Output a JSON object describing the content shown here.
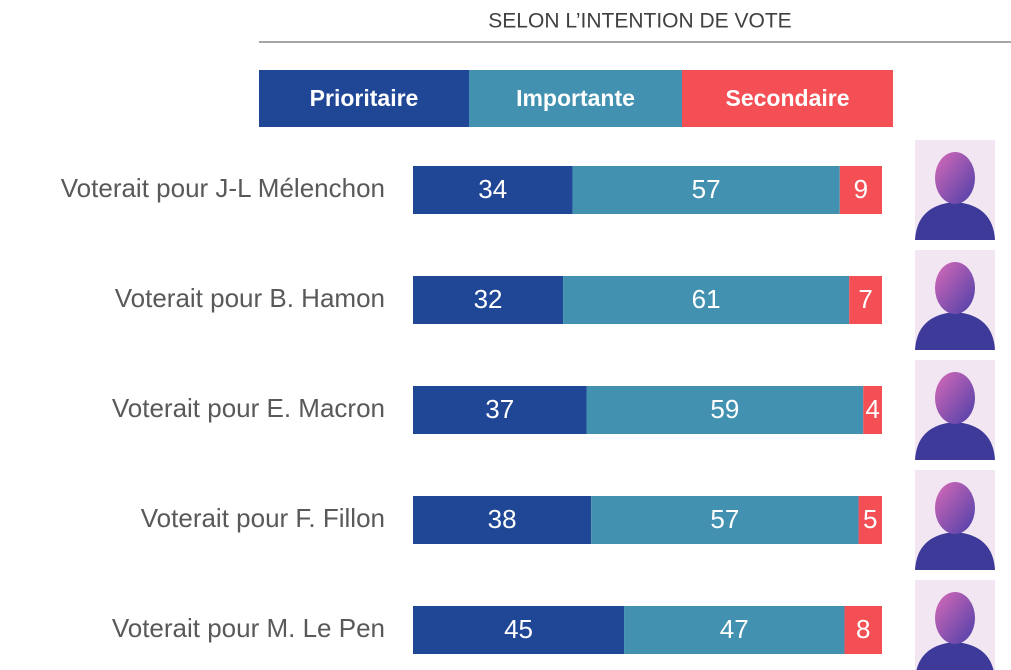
{
  "chart_data": {
    "type": "stacked-bar",
    "orientation": "horizontal",
    "title": "SELON L’INTENTION DE VOTE",
    "categories": [
      "Voterait pour J-L Mélenchon",
      "Voterait pour B. Hamon",
      "Voterait pour E. Macron",
      "Voterait pour F. Fillon",
      "Voterait pour M. Le Pen"
    ],
    "series": [
      {
        "name": "Prioritaire",
        "color": "#1f4796",
        "values": [
          34,
          32,
          37,
          38,
          45
        ]
      },
      {
        "name": "Importante",
        "color": "#4291b0",
        "values": [
          57,
          61,
          59,
          57,
          47
        ]
      },
      {
        "name": "Secondaire",
        "color": "#f44f55",
        "values": [
          9,
          7,
          4,
          5,
          8
        ]
      }
    ],
    "xlim": [
      0,
      100
    ]
  }
}
